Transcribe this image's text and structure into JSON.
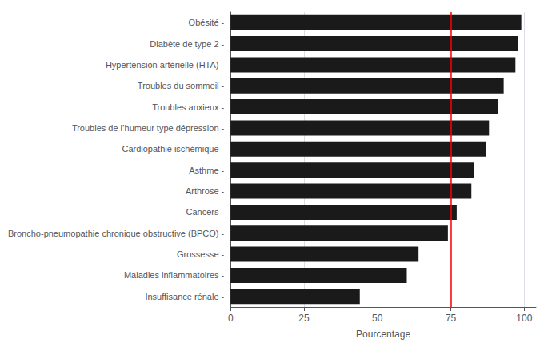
{
  "chart_data": {
    "type": "bar",
    "orientation": "horizontal",
    "categories": [
      "Insuffisance rénale -",
      "Maladies inflammatoires -",
      "Grossesse -",
      "Broncho-pneumopathie chronique obstructive (BPCO) -",
      "Cancers -",
      "Arthrose -",
      "Asthme -",
      "Cardiopathie ischémique -",
      "Troubles de l’humeur type dépression -",
      "Troubles anxieux -",
      "Troubles du sommeil -",
      "Hypertension artérielle (HTA) -",
      "Diabète de type 2 -",
      "Obésité -"
    ],
    "values": [
      44,
      60,
      64,
      74,
      77,
      82,
      83,
      87,
      88,
      91,
      93,
      97,
      98,
      99
    ],
    "color": "#1a1a1a",
    "xlabel": "Pourcentage",
    "xlim": [
      0,
      104
    ],
    "xticks": [
      0,
      25,
      50,
      75,
      100
    ],
    "reference_line": {
      "x": 75,
      "color": "red"
    },
    "grid": true
  }
}
